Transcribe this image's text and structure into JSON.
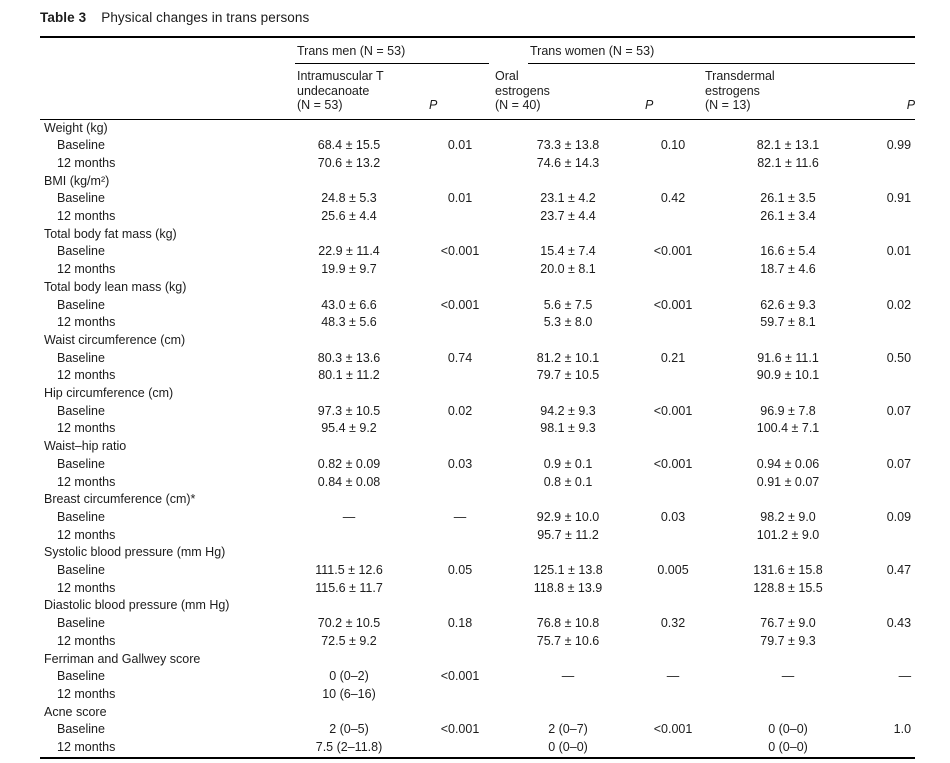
{
  "caption": {
    "label": "Table 3",
    "title": "Physical changes in trans persons"
  },
  "table": {
    "groups": [
      {
        "label": "Trans men (N = 53)"
      },
      {
        "label": "Trans women (N = 53)"
      }
    ],
    "columns": [
      {
        "label": "Intramuscular T\nundecanoate\n(N = 53)"
      },
      {
        "label": "P"
      },
      {
        "label": "Oral\nestrogens\n(N = 40)"
      },
      {
        "label": "P"
      },
      {
        "label": "Transdermal\nestrogens\n(N = 13)"
      },
      {
        "label": "P"
      }
    ],
    "sections": [
      {
        "name": "Weight (kg)",
        "rows": [
          {
            "label": "Baseline",
            "cells": [
              "68.4 ± 15.5",
              "0.01",
              "73.3 ± 13.8",
              "0.10",
              "82.1 ± 13.1",
              "0.99"
            ]
          },
          {
            "label": "12 months",
            "cells": [
              "70.6 ± 13.2",
              "",
              "74.6 ± 14.3",
              "",
              "82.1 ± 11.6",
              ""
            ]
          }
        ]
      },
      {
        "name": "BMI (kg/m²)",
        "rows": [
          {
            "label": "Baseline",
            "cells": [
              "24.8 ± 5.3",
              "0.01",
              "23.1 ± 4.2",
              "0.42",
              "26.1 ± 3.5",
              "0.91"
            ]
          },
          {
            "label": "12 months",
            "cells": [
              "25.6 ± 4.4",
              "",
              "23.7 ± 4.4",
              "",
              "26.1 ± 3.4",
              ""
            ]
          }
        ]
      },
      {
        "name": "Total body fat mass (kg)",
        "rows": [
          {
            "label": "Baseline",
            "cells": [
              "22.9 ± 11.4",
              "<0.001",
              "15.4 ± 7.4",
              "<0.001",
              "16.6 ± 5.4",
              "0.01"
            ]
          },
          {
            "label": "12 months",
            "cells": [
              "19.9 ± 9.7",
              "",
              "20.0 ± 8.1",
              "",
              "18.7 ± 4.6",
              ""
            ]
          }
        ]
      },
      {
        "name": "Total body lean mass (kg)",
        "rows": [
          {
            "label": "Baseline",
            "cells": [
              "43.0 ± 6.6",
              "<0.001",
              "5.6 ± 7.5",
              "<0.001",
              "62.6 ± 9.3",
              "0.02"
            ]
          },
          {
            "label": "12 months",
            "cells": [
              "48.3 ± 5.6",
              "",
              "5.3 ± 8.0",
              "",
              "59.7 ± 8.1",
              ""
            ]
          }
        ]
      },
      {
        "name": "Waist circumference (cm)",
        "rows": [
          {
            "label": "Baseline",
            "cells": [
              "80.3 ± 13.6",
              "0.74",
              "81.2 ± 10.1",
              "0.21",
              "91.6 ± 11.1",
              "0.50"
            ]
          },
          {
            "label": "12 months",
            "cells": [
              "80.1 ± 11.2",
              "",
              "79.7 ± 10.5",
              "",
              "90.9 ± 10.1",
              ""
            ]
          }
        ]
      },
      {
        "name": "Hip circumference (cm)",
        "rows": [
          {
            "label": "Baseline",
            "cells": [
              "97.3 ± 10.5",
              "0.02",
              "94.2 ± 9.3",
              "<0.001",
              "96.9 ± 7.8",
              "0.07"
            ]
          },
          {
            "label": "12 months",
            "cells": [
              "95.4 ± 9.2",
              "",
              "98.1 ± 9.3",
              "",
              "100.4 ± 7.1",
              ""
            ]
          }
        ]
      },
      {
        "name": "Waist–hip ratio",
        "rows": [
          {
            "label": "Baseline",
            "cells": [
              "0.82 ± 0.09",
              "0.03",
              "0.9 ± 0.1",
              "<0.001",
              "0.94 ± 0.06",
              "0.07"
            ]
          },
          {
            "label": "12 months",
            "cells": [
              "0.84 ± 0.08",
              "",
              "0.8 ± 0.1",
              "",
              "0.91 ± 0.07",
              ""
            ]
          }
        ]
      },
      {
        "name": "Breast circumference (cm)*",
        "rows": [
          {
            "label": "Baseline",
            "cells": [
              "—",
              "—",
              "92.9 ± 10.0",
              "0.03",
              "98.2 ± 9.0",
              "0.09"
            ]
          },
          {
            "label": "12 months",
            "cells": [
              "",
              "",
              "95.7 ± 11.2",
              "",
              "101.2 ± 9.0",
              ""
            ]
          }
        ]
      },
      {
        "name": "Systolic blood pressure (mm Hg)",
        "rows": [
          {
            "label": "Baseline",
            "cells": [
              "111.5 ± 12.6",
              "0.05",
              "125.1 ± 13.8",
              "0.005",
              "131.6 ± 15.8",
              "0.47"
            ]
          },
          {
            "label": "12 months",
            "cells": [
              "115.6 ± 11.7",
              "",
              "118.8 ± 13.9",
              "",
              "128.8 ± 15.5",
              ""
            ]
          }
        ]
      },
      {
        "name": "Diastolic blood pressure (mm Hg)",
        "rows": [
          {
            "label": "Baseline",
            "cells": [
              "70.2 ± 10.5",
              "0.18",
              "76.8 ± 10.8",
              "0.32",
              "76.7 ± 9.0",
              "0.43"
            ]
          },
          {
            "label": "12 months",
            "cells": [
              "72.5 ± 9.2",
              "",
              "75.7 ± 10.6",
              "",
              "79.7 ± 9.3",
              ""
            ]
          }
        ]
      },
      {
        "name": "Ferriman and Gallwey score",
        "rows": [
          {
            "label": "Baseline",
            "cells": [
              "0 (0–2)",
              "<0.001",
              "—",
              "—",
              "—",
              "—"
            ]
          },
          {
            "label": "12 months",
            "cells": [
              "10 (6–16)",
              "",
              "",
              "",
              "",
              ""
            ]
          }
        ]
      },
      {
        "name": "Acne score",
        "rows": [
          {
            "label": "Baseline",
            "cells": [
              "2 (0–5)",
              "<0.001",
              "2 (0–7)",
              "<0.001",
              "0 (0–0)",
              "1.0"
            ]
          },
          {
            "label": "12 months",
            "cells": [
              "7.5 (2–11.8)",
              "",
              "0 (0–0)",
              "",
              "0 (0–0)",
              ""
            ]
          }
        ]
      }
    ]
  }
}
